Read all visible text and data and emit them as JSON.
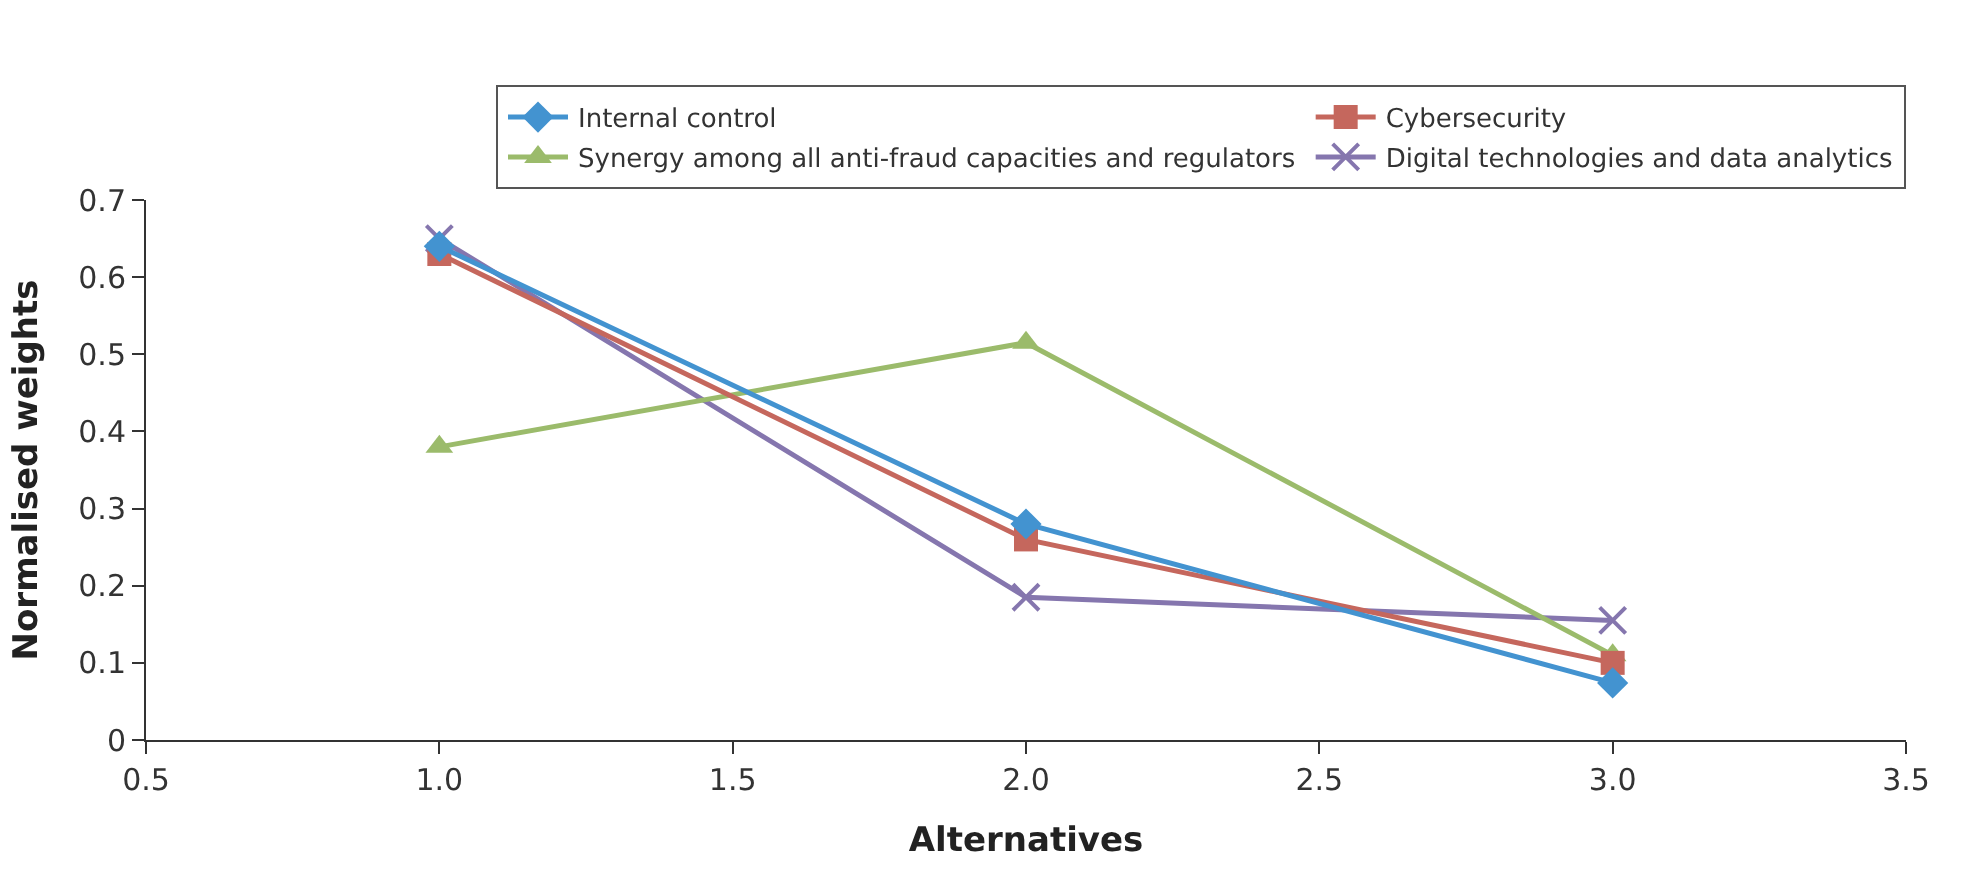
{
  "chart_data": {
    "type": "line",
    "xlabel": "Alternatives",
    "ylabel": "Normalised weights",
    "x": [
      1.0,
      2.0,
      3.0
    ],
    "series": [
      {
        "name": "Internal control",
        "color": "#4393d0",
        "marker": "diamond",
        "values": [
          0.64,
          0.28,
          0.074
        ]
      },
      {
        "name": "Cybersecurity",
        "color": "#c5675d",
        "marker": "square",
        "values": [
          0.63,
          0.26,
          0.1
        ]
      },
      {
        "name": "Synergy among all anti-fraud capacities and regulators",
        "color": "#9bbb6b",
        "marker": "triangle",
        "values": [
          0.38,
          0.515,
          0.11
        ]
      },
      {
        "name": "Digital technologies and data analytics",
        "color": "#8576ae",
        "marker": "cross",
        "values": [
          0.65,
          0.185,
          0.155
        ]
      }
    ],
    "xlim": [
      0.5,
      3.5
    ],
    "xticks": [
      0.5,
      {
        "value": 1.0,
        "label": "1.0"
      },
      1.5,
      {
        "value": 2.0,
        "label": "2.0"
      },
      2.5,
      {
        "value": 3.0,
        "label": "3.0"
      },
      3.5
    ],
    "ylim": [
      0,
      0.7
    ],
    "yticks": [
      0,
      0.1,
      0.2,
      0.3,
      0.4,
      0.5,
      0.6,
      0.7
    ],
    "legend": "top right",
    "line_style": "solid"
  }
}
